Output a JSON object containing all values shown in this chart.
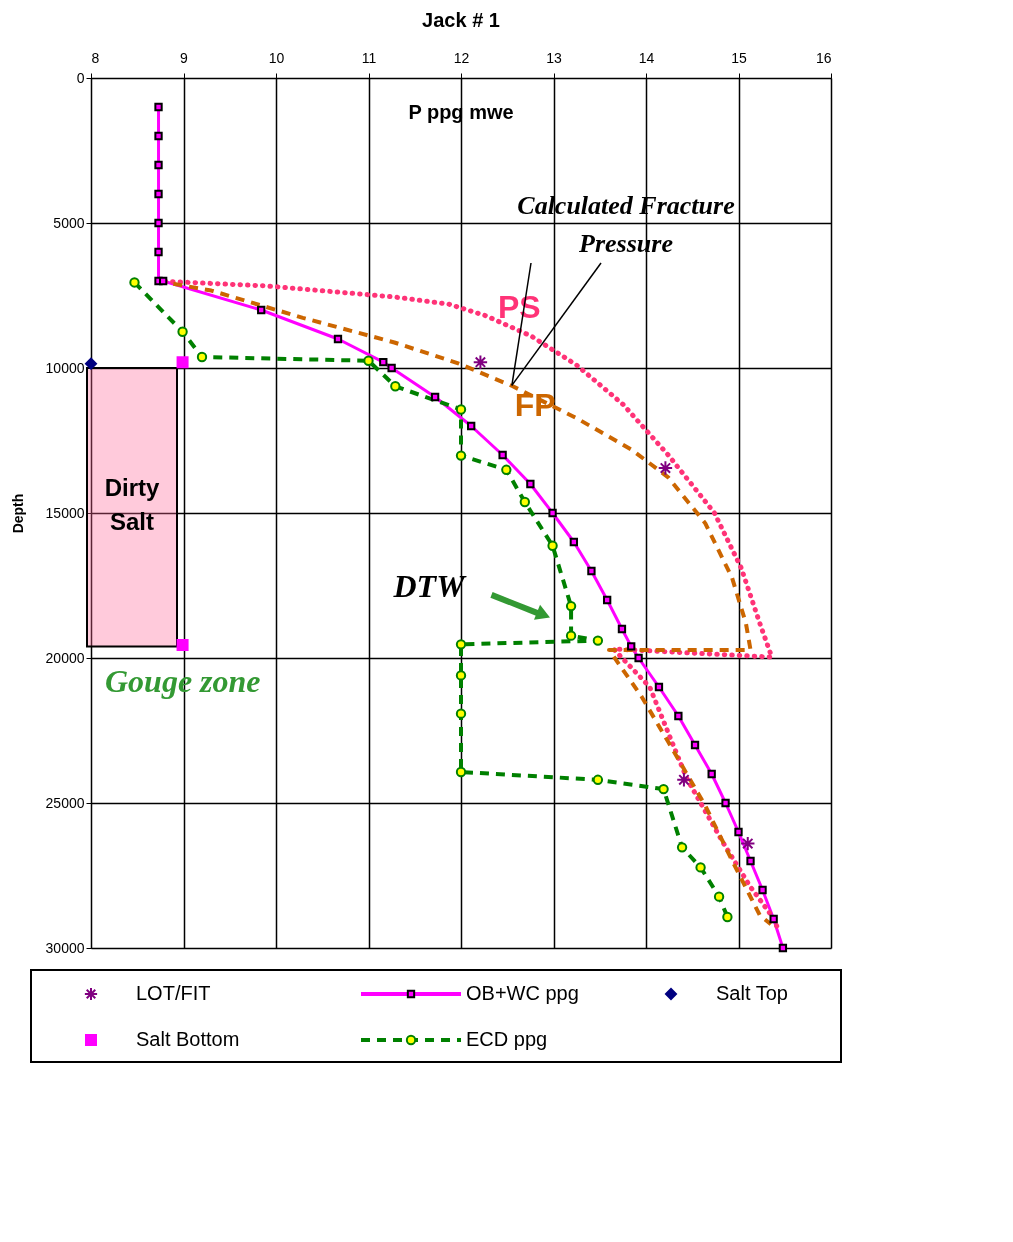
{
  "chart_data": {
    "type": "line",
    "title": "Jack # 1",
    "xlabel": "P ppg mwe",
    "ylabel": "Depth",
    "xlim": [
      8,
      16
    ],
    "xticks": [
      8,
      9,
      10,
      11,
      12,
      13,
      14,
      15,
      16
    ],
    "ylim": [
      30000,
      0
    ],
    "yticks": [
      0,
      5000,
      10000,
      15000,
      20000,
      25000,
      30000
    ],
    "grid": true,
    "legend": "bottom",
    "series": [
      {
        "name": "LOT/FIT",
        "type": "scatter",
        "color": "#800080",
        "marker": "cross",
        "x": [
          12.21,
          14.21,
          14.41,
          15.1
        ],
        "values": [
          9800,
          13450,
          24200,
          26400
        ]
      },
      {
        "name": "OB+WC ppg",
        "color": "#ff00ff",
        "marker": "square",
        "line_style": "solid",
        "x": [
          8.73,
          8.73,
          8.73,
          8.73,
          8.73,
          8.73,
          8.73,
          8.78,
          9.84,
          10.67,
          11.16,
          11.25,
          11.72,
          12.11,
          12.45,
          12.75,
          12.99,
          13.22,
          13.41,
          13.58,
          13.74,
          13.84,
          13.92,
          14.14,
          14.35,
          14.53,
          14.71,
          14.86,
          15.0,
          15.13,
          15.26,
          15.38,
          15.48
        ],
        "values": [
          1000,
          2000,
          3000,
          4000,
          5000,
          6000,
          7000,
          7000,
          8000,
          9000,
          9800,
          10000,
          11000,
          12000,
          13000,
          14000,
          15000,
          16000,
          17000,
          18000,
          19000,
          19600,
          20000,
          21000,
          22000,
          23000,
          24000,
          25000,
          26000,
          27000,
          28000,
          29000,
          30000
        ]
      },
      {
        "name": "Salt Top",
        "type": "scatter",
        "color": "#000080",
        "marker": "diamond",
        "x": [
          8.0
        ],
        "values": [
          9850
        ]
      },
      {
        "name": "Salt Bottom",
        "type": "scatter",
        "color": "#ff00ff",
        "marker": "square",
        "x": [
          8.99,
          8.99
        ],
        "values": [
          9800,
          19550
        ]
      },
      {
        "name": "ECD ppg",
        "color": "#008000",
        "marker": "circle",
        "line_style": "dashed",
        "x": [
          8.47,
          8.99,
          9.2,
          11.0,
          11.29,
          12.0,
          12.0,
          12.49,
          12.69,
          12.99,
          13.19,
          13.19,
          13.48,
          12.0,
          12.0,
          12.0,
          12.0,
          13.48,
          14.19,
          14.39,
          14.59,
          14.79,
          14.88
        ],
        "values": [
          7050,
          8750,
          9620,
          9750,
          10630,
          11430,
          13020,
          13510,
          14620,
          16130,
          18210,
          19230,
          19400,
          19530,
          20600,
          21920,
          23930,
          24200,
          24520,
          26530,
          27220,
          28230,
          28930
        ]
      },
      {
        "name": "PS",
        "color": "#ff3377",
        "marker": "none",
        "line_style": "dotted",
        "x": [
          8.72,
          9.9,
          11.28,
          11.87,
          12.27,
          12.76,
          13.25,
          13.75,
          14.24,
          14.74,
          15.03,
          15.23,
          15.36,
          13.65,
          14.04,
          14.44,
          14.83,
          15.13,
          15.35,
          15.43
        ],
        "values": [
          7000,
          7170,
          7550,
          7800,
          8200,
          8900,
          9900,
          11250,
          13000,
          15000,
          16900,
          18800,
          19970,
          19690,
          21000,
          24150,
          26350,
          27900,
          28850,
          29350
        ]
      },
      {
        "name": "FP",
        "color": "#cc6600",
        "marker": "none",
        "line_style": "dashed",
        "x": [
          8.72,
          9.3,
          10.29,
          11.28,
          11.97,
          12.56,
          13.25,
          13.85,
          14.24,
          14.64,
          14.93,
          15.08,
          15.13,
          13.6,
          13.95,
          14.24,
          14.64,
          14.93,
          15.23,
          15.35
        ],
        "values": [
          7000,
          7330,
          8270,
          9120,
          9840,
          10630,
          11730,
          12830,
          13770,
          15350,
          17230,
          18800,
          19720,
          19720,
          21320,
          22890,
          25090,
          26980,
          28870,
          29180
        ]
      }
    ],
    "bands": [
      {
        "axis": "y",
        "from": 10000,
        "to": 19600,
        "label": "Dirty Salt",
        "color": "#ff6699"
      }
    ],
    "annotations": [
      {
        "text": "Calculated Fracture\nPressure",
        "x": 12.55,
        "y": 10600
      },
      "DTW",
      "Gouge zone"
    ]
  }
}
